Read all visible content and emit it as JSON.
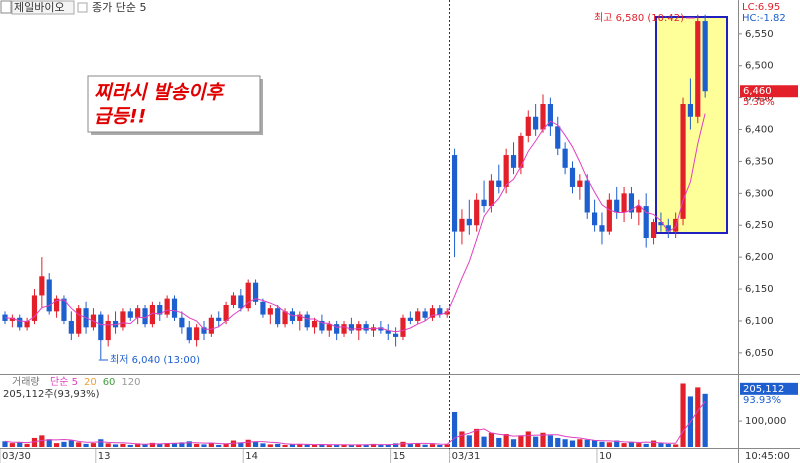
{
  "chart_data": [
    {
      "type": "candlestick",
      "title": "제일바이오",
      "categories": [
        "03/30",
        null,
        null,
        null,
        null,
        null,
        null,
        null,
        null,
        null,
        null,
        null,
        null,
        "13",
        null,
        null,
        null,
        null,
        null,
        null,
        null,
        null,
        null,
        null,
        null,
        null,
        null,
        null,
        null,
        null,
        null,
        null,
        null,
        "14",
        null,
        null,
        null,
        null,
        null,
        null,
        null,
        null,
        null,
        null,
        null,
        null,
        null,
        null,
        null,
        null,
        null,
        null,
        null,
        "15",
        null,
        null,
        null,
        null,
        null,
        null,
        null,
        "03/31",
        null,
        null,
        null,
        null,
        null,
        null,
        null,
        null,
        null,
        null,
        null,
        null,
        null,
        null,
        null,
        null,
        null,
        null,
        null,
        "10",
        null,
        null,
        null,
        null,
        null,
        null,
        null,
        null,
        null,
        null,
        null,
        null,
        null,
        null
      ],
      "time_label": "10:45:00",
      "ohlc": [
        [
          6110,
          6115,
          6095,
          6100
        ],
        [
          6100,
          6110,
          6090,
          6105
        ],
        [
          6105,
          6110,
          6085,
          6090
        ],
        [
          6090,
          6105,
          6085,
          6100
        ],
        [
          6100,
          6150,
          6095,
          6140
        ],
        [
          6140,
          6200,
          6120,
          6170
        ],
        [
          6165,
          6175,
          6110,
          6115
        ],
        [
          6115,
          6140,
          6105,
          6135
        ],
        [
          6135,
          6140,
          6095,
          6100
        ],
        [
          6100,
          6115,
          6070,
          6080
        ],
        [
          6080,
          6125,
          6075,
          6120
        ],
        [
          6120,
          6130,
          6080,
          6090
        ],
        [
          6090,
          6120,
          6085,
          6110
        ],
        [
          6110,
          6115,
          6040,
          6070
        ],
        [
          6070,
          6110,
          6060,
          6100
        ],
        [
          6100,
          6115,
          6080,
          6090
        ],
        [
          6090,
          6120,
          6085,
          6115
        ],
        [
          6115,
          6120,
          6100,
          6105
        ],
        [
          6105,
          6125,
          6095,
          6120
        ],
        [
          6120,
          6125,
          6090,
          6095
        ],
        [
          6095,
          6130,
          6090,
          6125
        ],
        [
          6125,
          6130,
          6100,
          6110
        ],
        [
          6110,
          6140,
          6105,
          6135
        ],
        [
          6135,
          6140,
          6100,
          6105
        ],
        [
          6105,
          6115,
          6080,
          6090
        ],
        [
          6090,
          6100,
          6065,
          6070
        ],
        [
          6070,
          6095,
          6060,
          6090
        ],
        [
          6090,
          6100,
          6070,
          6080
        ],
        [
          6080,
          6110,
          6075,
          6105
        ],
        [
          6105,
          6115,
          6090,
          6100
        ],
        [
          6100,
          6130,
          6095,
          6125
        ],
        [
          6125,
          6145,
          6120,
          6140
        ],
        [
          6140,
          6150,
          6115,
          6120
        ],
        [
          6120,
          6165,
          6115,
          6160
        ],
        [
          6160,
          6165,
          6125,
          6130
        ],
        [
          6130,
          6135,
          6105,
          6110
        ],
        [
          6110,
          6125,
          6095,
          6120
        ],
        [
          6120,
          6125,
          6090,
          6095
        ],
        [
          6095,
          6120,
          6090,
          6115
        ],
        [
          6115,
          6120,
          6095,
          6100
        ],
        [
          6100,
          6115,
          6085,
          6110
        ],
        [
          6110,
          6115,
          6085,
          6090
        ],
        [
          6090,
          6105,
          6080,
          6100
        ],
        [
          6100,
          6110,
          6080,
          6085
        ],
        [
          6085,
          6100,
          6075,
          6095
        ],
        [
          6095,
          6100,
          6070,
          6080
        ],
        [
          6080,
          6100,
          6075,
          6095
        ],
        [
          6095,
          6105,
          6080,
          6085
        ],
        [
          6085,
          6100,
          6070,
          6095
        ],
        [
          6095,
          6100,
          6080,
          6085
        ],
        [
          6085,
          6095,
          6075,
          6090
        ],
        [
          6090,
          6100,
          6080,
          6085
        ],
        [
          6085,
          6095,
          6070,
          6080
        ],
        [
          6080,
          6090,
          6060,
          6075
        ],
        [
          6075,
          6110,
          6070,
          6105
        ],
        [
          6105,
          6115,
          6095,
          6100
        ],
        [
          6100,
          6120,
          6095,
          6115
        ],
        [
          6115,
          6120,
          6100,
          6105
        ],
        [
          6105,
          6125,
          6100,
          6120
        ],
        [
          6120,
          6125,
          6105,
          6110
        ],
        [
          6110,
          6120,
          6105,
          6115
        ],
        [
          6360,
          6370,
          6200,
          6240
        ],
        [
          6240,
          6275,
          6220,
          6260
        ],
        [
          6260,
          6290,
          6235,
          6250
        ],
        [
          6250,
          6300,
          6240,
          6290
        ],
        [
          6290,
          6320,
          6270,
          6280
        ],
        [
          6280,
          6330,
          6270,
          6320
        ],
        [
          6320,
          6345,
          6300,
          6310
        ],
        [
          6310,
          6370,
          6300,
          6360
        ],
        [
          6360,
          6380,
          6330,
          6340
        ],
        [
          6340,
          6395,
          6330,
          6390
        ],
        [
          6390,
          6430,
          6380,
          6420
        ],
        [
          6420,
          6440,
          6390,
          6400
        ],
        [
          6400,
          6455,
          6395,
          6440
        ],
        [
          6440,
          6450,
          6390,
          6405
        ],
        [
          6405,
          6420,
          6360,
          6370
        ],
        [
          6370,
          6380,
          6330,
          6340
        ],
        [
          6340,
          6350,
          6300,
          6310
        ],
        [
          6310,
          6330,
          6290,
          6320
        ],
        [
          6320,
          6330,
          6260,
          6270
        ],
        [
          6270,
          6290,
          6240,
          6250
        ],
        [
          6250,
          6270,
          6220,
          6240
        ],
        [
          6240,
          6300,
          6235,
          6290
        ],
        [
          6290,
          6310,
          6260,
          6270
        ],
        [
          6270,
          6310,
          6255,
          6300
        ],
        [
          6300,
          6310,
          6260,
          6270
        ],
        [
          6270,
          6290,
          6250,
          6280
        ],
        [
          6280,
          6300,
          6215,
          6230
        ],
        [
          6230,
          6260,
          6220,
          6255
        ],
        [
          6255,
          6270,
          6240,
          6250
        ],
        [
          6250,
          6260,
          6230,
          6240
        ],
        [
          6240,
          6270,
          6230,
          6260
        ],
        [
          6260,
          6450,
          6250,
          6440
        ],
        [
          6440,
          6480,
          6400,
          6420
        ],
        [
          6420,
          6580,
          6410,
          6570
        ],
        [
          6570,
          6580,
          6450,
          6460
        ]
      ],
      "up_color": "#e3202a",
      "down_color": "#1d5fcf",
      "ma_name": "종가 단순 5",
      "ma_color": "#e040c0",
      "ma_values": [
        6105,
        6104,
        6100,
        6099,
        6107,
        6121,
        6124,
        6132,
        6133,
        6120,
        6110,
        6105,
        6100,
        6094,
        6094,
        6094,
        6097,
        6096,
        6106,
        6105,
        6112,
        6111,
        6117,
        6116,
        6113,
        6105,
        6100,
        6087,
        6087,
        6091,
        6100,
        6110,
        6118,
        6129,
        6135,
        6132,
        6128,
        6123,
        6114,
        6108,
        6108,
        6103,
        6103,
        6097,
        6096,
        6090,
        6091,
        6087,
        6088,
        6088,
        6088,
        6089,
        6085,
        6083,
        6085,
        6089,
        6095,
        6100,
        6109,
        6110,
        6113,
        6139,
        6167,
        6193,
        6228,
        6264,
        6280,
        6292,
        6313,
        6322,
        6342,
        6366,
        6382,
        6400,
        6413,
        6407,
        6391,
        6373,
        6349,
        6323,
        6302,
        6282,
        6274,
        6270,
        6270,
        6274,
        6282,
        6270,
        6267,
        6257,
        6240,
        6247,
        6289,
        6318,
        6378,
        6425
      ],
      "ylim": [
        6020,
        6603
      ],
      "yticks": [
        {
          "value": 6050,
          "label": "6,050"
        },
        {
          "value": 6100,
          "label": "6,100"
        },
        {
          "value": 6150,
          "label": "6,150"
        },
        {
          "value": 6200,
          "label": "6,200"
        },
        {
          "value": 6250,
          "label": "6,250"
        },
        {
          "value": 6300,
          "label": "6,300"
        },
        {
          "value": 6350,
          "label": "6,350"
        },
        {
          "value": 6400,
          "label": "6,400"
        },
        {
          "value": 6450,
          "label": "6,450"
        },
        {
          "value": 6500,
          "label": "6,500"
        },
        {
          "value": 6550,
          "label": "6,550"
        }
      ],
      "annotation": [
        "찌라시 발송이후",
        "급등!!"
      ],
      "high_label": "최고 6,580 (10:42)",
      "low_label": "최저 6,040 (13:00)",
      "lc": "LC:6.95",
      "hc": "HC:-1.82",
      "last_price": {
        "value": 6460,
        "label": "6,460"
      },
      "change": "5.38%"
    },
    {
      "type": "bar",
      "title": "거래량",
      "legend": [
        {
          "name": "단순 5",
          "color": "#e040c0"
        },
        {
          "name": "20",
          "color": "#f0a030"
        },
        {
          "name": "60",
          "color": "#40a040"
        },
        {
          "name": "120",
          "color": "#999999"
        }
      ],
      "summary": "205,112주(93,93%)",
      "values": [
        22000,
        15000,
        18000,
        12000,
        35000,
        45000,
        30000,
        15000,
        20000,
        25000,
        18000,
        12000,
        15000,
        30000,
        14000,
        10000,
        12000,
        8000,
        14000,
        10000,
        16000,
        12000,
        15000,
        14000,
        18000,
        22000,
        12000,
        10000,
        15000,
        8000,
        14000,
        25000,
        18000,
        28000,
        20000,
        14000,
        10000,
        12000,
        8000,
        10000,
        12000,
        9000,
        8000,
        10000,
        7000,
        8000,
        9000,
        7000,
        10000,
        8000,
        12000,
        9000,
        8000,
        14000,
        20000,
        12000,
        15000,
        9000,
        11000,
        8000,
        10000,
        135000,
        60000,
        45000,
        70000,
        40000,
        55000,
        35000,
        50000,
        30000,
        45000,
        60000,
        40000,
        55000,
        45000,
        35000,
        30000,
        25000,
        30000,
        28000,
        25000,
        20000,
        18000,
        25000,
        15000,
        20000,
        15000,
        12000,
        25000,
        15000,
        12000,
        10000,
        245000,
        195000,
        230000,
        205112
      ],
      "ma5": [
        22000,
        18500,
        18300,
        16800,
        20400,
        25000,
        28000,
        27400,
        29000,
        27000,
        21600,
        18000,
        18000,
        20000,
        17800,
        16200,
        16200,
        14800,
        11600,
        10800,
        12000,
        12000,
        13400,
        14200,
        15000,
        16200,
        16200,
        15200,
        15400,
        13400,
        11800,
        14400,
        16000,
        18600,
        21000,
        21000,
        18000,
        16800,
        12800,
        10800,
        10400,
        10200,
        9400,
        9800,
        9200,
        8400,
        8400,
        8200,
        8200,
        8400,
        9400,
        9200,
        9400,
        10200,
        12600,
        12600,
        13800,
        14000,
        13400,
        11000,
        10600,
        34600,
        45800,
        53400,
        64000,
        70000,
        54000,
        49000,
        46000,
        42000,
        43000,
        44000,
        46000,
        46000,
        47000,
        47000,
        41000,
        37000,
        34600,
        29600,
        25600,
        24200,
        23600,
        21600,
        19600,
        19000,
        17400,
        19000,
        17400,
        15800,
        14400,
        14400,
        60400,
        97000,
        140000,
        175000
      ],
      "ylim": [
        0,
        270000
      ],
      "yticks": [
        {
          "value": 100000,
          "label": "100,000"
        }
      ],
      "last_value": {
        "value": 205112,
        "label": "205,112"
      },
      "change": "93.93%"
    }
  ]
}
